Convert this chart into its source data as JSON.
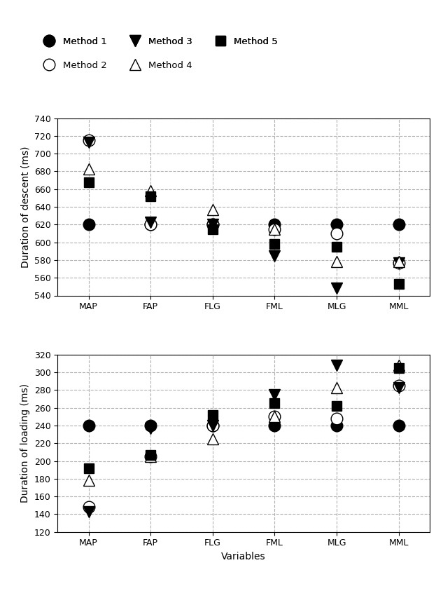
{
  "categories": [
    "MAP",
    "FAP",
    "FLG",
    "FML",
    "MLG",
    "MML"
  ],
  "descent": {
    "method1": [
      620,
      620,
      620,
      620,
      620,
      620
    ],
    "method2": [
      715,
      620,
      620,
      615,
      610,
      577
    ],
    "method3": [
      713,
      623,
      620,
      585,
      548,
      577
    ],
    "method4": [
      683,
      658,
      637,
      615,
      578,
      578
    ],
    "method5": [
      668,
      652,
      615,
      598,
      595,
      553
    ]
  },
  "loading": {
    "method1": [
      240,
      240,
      240,
      240,
      240,
      240
    ],
    "method2": [
      148,
      205,
      240,
      250,
      248,
      285
    ],
    "method3": [
      143,
      237,
      240,
      275,
      308,
      283
    ],
    "method4": [
      178,
      205,
      225,
      250,
      283,
      308
    ],
    "method5": [
      192,
      207,
      252,
      265,
      262,
      305
    ]
  },
  "descent_ylim": [
    540,
    740
  ],
  "loading_ylim": [
    120,
    320
  ],
  "descent_yticks": [
    540,
    560,
    580,
    600,
    620,
    640,
    660,
    680,
    700,
    720,
    740
  ],
  "loading_yticks": [
    120,
    140,
    160,
    180,
    200,
    220,
    240,
    260,
    280,
    300,
    320
  ],
  "ylabel_descent": "Duration of descent (ms)",
  "ylabel_loading": "Duration of loading (ms)",
  "xlabel": "Variables",
  "marker_size": 10,
  "bg_color": "#ffffff",
  "grid_color": "#b0b0b0",
  "legend_row1": [
    "Method 1",
    "Method 3",
    "Method 5"
  ],
  "legend_row2": [
    "Method 2",
    "Method 4"
  ]
}
